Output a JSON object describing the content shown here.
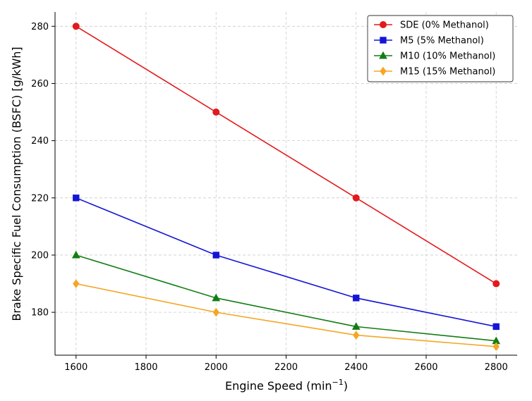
{
  "chart_data": {
    "type": "line",
    "xlabel": "Engine Speed (min",
    "xlabel_sup": "−1",
    "xlabel_close": ")",
    "ylabel": "Brake Specific Fuel Consumption (BSFC) [g/kWh]",
    "x": [
      1600,
      2000,
      2400,
      2800
    ],
    "xlim": [
      1540,
      2860
    ],
    "ylim": [
      165,
      285
    ],
    "xticks": [
      "1600",
      "1800",
      "2000",
      "2200",
      "2400",
      "2600",
      "2800"
    ],
    "yticks": [
      "180",
      "200",
      "220",
      "240",
      "260",
      "280"
    ],
    "grid": true,
    "grid_style": "dashed",
    "legend_position": "top-right",
    "series": [
      {
        "name": "SDE (0% Methanol)",
        "values": [
          280,
          250,
          220,
          190
        ],
        "color": "#e31a1c",
        "marker": "circle"
      },
      {
        "name": "M5 (5% Methanol)",
        "values": [
          220,
          200,
          185,
          175
        ],
        "color": "#1515d6",
        "marker": "square"
      },
      {
        "name": "M10 (10% Methanol)",
        "values": [
          200,
          185,
          175,
          170
        ],
        "color": "#137d13",
        "marker": "triangle"
      },
      {
        "name": "M15 (15% Methanol)",
        "values": [
          190,
          180,
          172,
          168
        ],
        "color": "#f5a623",
        "marker": "diamond"
      }
    ]
  }
}
